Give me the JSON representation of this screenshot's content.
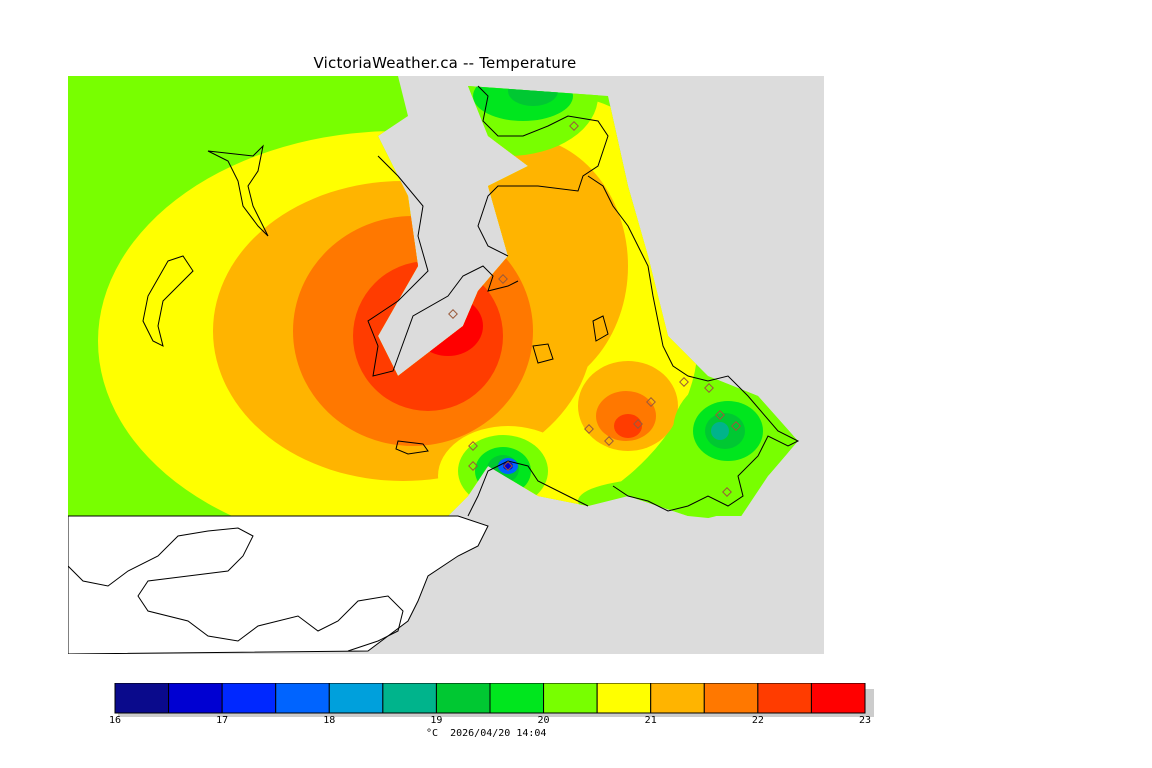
{
  "title": "VictoriaWeather.ca -- Temperature",
  "legend": {
    "ticks": [
      "16",
      "17",
      "18",
      "19",
      "20",
      "21",
      "22",
      "23"
    ],
    "colors": [
      "#0a0a8c",
      "#0000d2",
      "#0028ff",
      "#0064ff",
      "#00a0dc",
      "#00b48c",
      "#00c832",
      "#00e61e",
      "#78ff00",
      "#ffff00",
      "#ffb400",
      "#ff7800",
      "#ff3c00",
      "#ff0000"
    ],
    "unit": "°C",
    "timestamp": "2026/04/20 14:04"
  },
  "map_colors": {
    "land_outside": "#dcdcdc",
    "water": "#ffffff",
    "coast": "#000000",
    "station_marker": "#9a5a3a"
  }
}
